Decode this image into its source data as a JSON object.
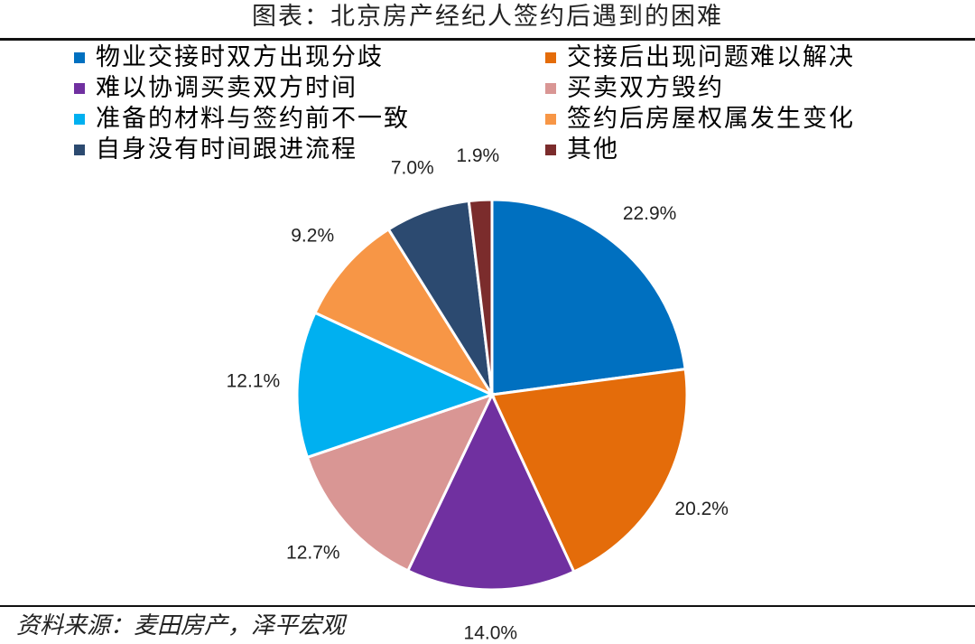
{
  "title": "图表：北京房产经纪人签约后遇到的困难",
  "source": "资料来源：麦田房产，泽平宏观",
  "chart_data": {
    "type": "pie",
    "title": "图表：北京房产经纪人签约后遇到的困难",
    "legend_position": "top",
    "slices": [
      {
        "label": "物业交接时双方出现分歧",
        "value": 22.9,
        "value_label": "22.9%",
        "color": "#0070C0"
      },
      {
        "label": "交接后出现问题难以解决",
        "value": 20.2,
        "value_label": "20.2%",
        "color": "#E46C0A"
      },
      {
        "label": "难以协调买卖双方时间",
        "value": 14.0,
        "value_label": "14.0%",
        "color": "#7030A0"
      },
      {
        "label": "买卖双方毁约",
        "value": 12.7,
        "value_label": "12.7%",
        "color": "#D99694"
      },
      {
        "label": "准备的材料与签约前不一致",
        "value": 12.1,
        "value_label": "12.1%",
        "color": "#00B0F0"
      },
      {
        "label": "签约后房屋权属发生变化",
        "value": 9.2,
        "value_label": "9.2%",
        "color": "#F79646"
      },
      {
        "label": "自身没有时间跟进流程",
        "value": 7.0,
        "value_label": "7.0%",
        "color": "#2C4A70"
      },
      {
        "label": "其他",
        "value": 1.9,
        "value_label": "1.9%",
        "color": "#7B2C2C"
      }
    ]
  }
}
